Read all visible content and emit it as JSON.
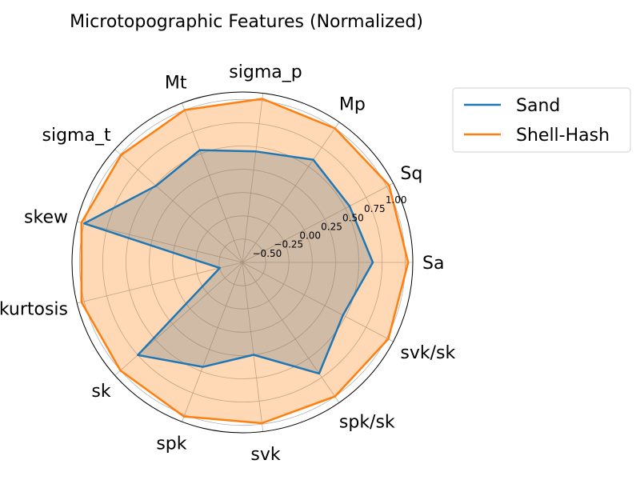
{
  "chart_data": {
    "type": "radar",
    "title": "Microtopographic Features (Normalized)",
    "categories": [
      "Sa",
      "Sq",
      "Mp",
      "sigma_p",
      "Mt",
      "sigma_t",
      "skew",
      "kurtosis",
      "sk",
      "spk",
      "svk",
      "spk/sk",
      "svk/sk"
    ],
    "r_ticks": [
      -0.5,
      -0.25,
      0.0,
      0.25,
      0.5,
      0.75,
      1.0
    ],
    "r_tick_labels": [
      "−0.50",
      "−0.25",
      "0.00",
      "0.25",
      "0.50",
      "0.75",
      "1.00"
    ],
    "rlim": [
      -0.75,
      1.08
    ],
    "grid": true,
    "legend_position": "upper-right-outside",
    "series": [
      {
        "name": "Sand",
        "color": "#1f77b4",
        "fill": "#1f77b4",
        "values": [
          0.65,
          0.55,
          0.59,
          0.45,
          0.54,
          0.49,
          1.0,
          -0.5,
          0.75,
          0.45,
          0.25,
          0.7,
          0.47
        ]
      },
      {
        "name": "Shell-Hash",
        "color": "#ff7f0e",
        "fill": "#ff7f0e",
        "values": [
          1.03,
          1.03,
          1.0,
          1.02,
          1.0,
          0.99,
          1.03,
          1.03,
          1.0,
          1.02,
          0.99,
          1.0,
          1.02
        ]
      }
    ]
  }
}
